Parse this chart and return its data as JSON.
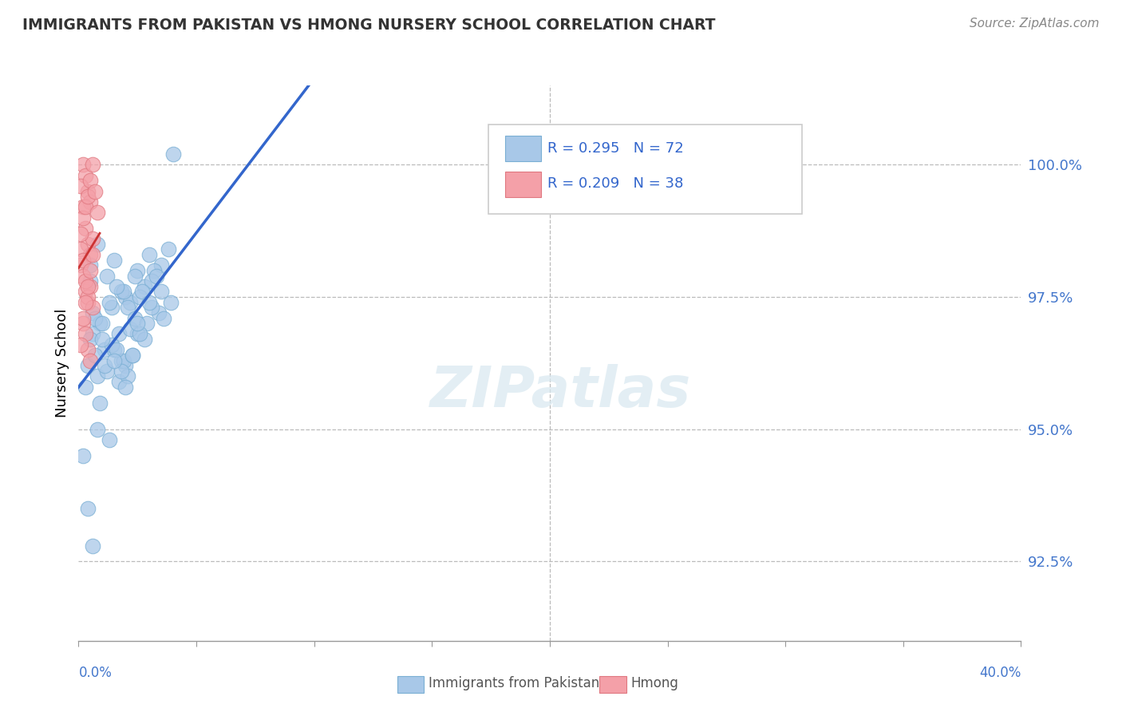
{
  "title": "IMMIGRANTS FROM PAKISTAN VS HMONG NURSERY SCHOOL CORRELATION CHART",
  "source": "Source: ZipAtlas.com",
  "ylabel": "Nursery School",
  "xlim": [
    0.0,
    40.0
  ],
  "ylim": [
    91.0,
    101.5
  ],
  "yticks": [
    92.5,
    95.0,
    97.5,
    100.0
  ],
  "ytick_labels": [
    "92.5%",
    "95.0%",
    "97.5%",
    "100.0%"
  ],
  "legend_labels": [
    "Immigrants from Pakistan",
    "Hmong"
  ],
  "blue_color": "#a8c8e8",
  "blue_edge": "#7aafd4",
  "pink_color": "#f4a0a8",
  "pink_edge": "#e07880",
  "line_blue": "#3366cc",
  "line_pink": "#cc3333",
  "R_blue": 0.295,
  "N_blue": 72,
  "R_pink": 0.209,
  "N_pink": 38,
  "blue_x": [
    0.5,
    1.5,
    2.0,
    0.8,
    1.2,
    0.5,
    1.8,
    2.5,
    3.0,
    2.2,
    2.8,
    3.5,
    4.0,
    3.2,
    3.8,
    0.6,
    0.9,
    1.4,
    1.9,
    2.4,
    1.7,
    1.1,
    0.7,
    1.3,
    1.6,
    2.1,
    2.6,
    3.1,
    2.7,
    3.3,
    0.4,
    0.3,
    0.2,
    0.8,
    0.6,
    1.0,
    1.5,
    2.0,
    2.5,
    1.8,
    2.2,
    1.2,
    0.9,
    0.7,
    0.5,
    1.4,
    1.9,
    2.4,
    2.9,
    3.4,
    2.8,
    2.3,
    1.7,
    1.1,
    1.6,
    2.1,
    2.6,
    3.1,
    3.6,
    3.9,
    0.8,
    1.3,
    1.8,
    2.3,
    0.4,
    0.6,
    1.0,
    1.5,
    2.0,
    2.5,
    3.0,
    3.5
  ],
  "blue_y": [
    97.8,
    98.2,
    97.5,
    98.5,
    97.9,
    98.1,
    97.6,
    98.0,
    98.3,
    97.4,
    97.7,
    98.1,
    100.2,
    98.0,
    98.4,
    97.2,
    97.0,
    97.3,
    97.6,
    97.9,
    96.8,
    96.5,
    97.1,
    97.4,
    97.7,
    97.3,
    97.5,
    97.8,
    97.6,
    97.9,
    96.2,
    95.8,
    94.5,
    96.0,
    96.8,
    97.0,
    96.5,
    96.2,
    96.8,
    96.3,
    96.9,
    96.1,
    95.5,
    96.4,
    96.7,
    96.6,
    96.3,
    97.1,
    97.0,
    97.2,
    96.7,
    96.4,
    95.9,
    96.2,
    96.5,
    96.0,
    96.8,
    97.3,
    97.1,
    97.4,
    95.0,
    94.8,
    96.1,
    96.4,
    93.5,
    92.8,
    96.7,
    96.3,
    95.8,
    97.0,
    97.4,
    97.6
  ],
  "pink_x": [
    0.2,
    0.3,
    0.4,
    0.5,
    0.1,
    0.2,
    0.3,
    0.4,
    0.5,
    0.6,
    0.1,
    0.2,
    0.3,
    0.4,
    0.5,
    0.1,
    0.2,
    0.3,
    0.4,
    0.6,
    0.2,
    0.3,
    0.4,
    0.5,
    0.1,
    0.2,
    0.3,
    0.4,
    0.5,
    0.6,
    0.1,
    0.2,
    0.3,
    0.4,
    0.5,
    0.6,
    0.7,
    0.8
  ],
  "pink_y": [
    100.0,
    99.8,
    99.5,
    99.3,
    99.6,
    99.2,
    98.8,
    98.5,
    98.3,
    98.6,
    98.1,
    97.9,
    97.6,
    97.4,
    97.7,
    98.4,
    98.2,
    97.8,
    97.5,
    97.3,
    97.0,
    96.8,
    96.5,
    96.3,
    96.6,
    97.1,
    97.4,
    97.7,
    98.0,
    98.3,
    98.7,
    99.0,
    99.2,
    99.4,
    99.7,
    100.0,
    99.5,
    99.1
  ]
}
